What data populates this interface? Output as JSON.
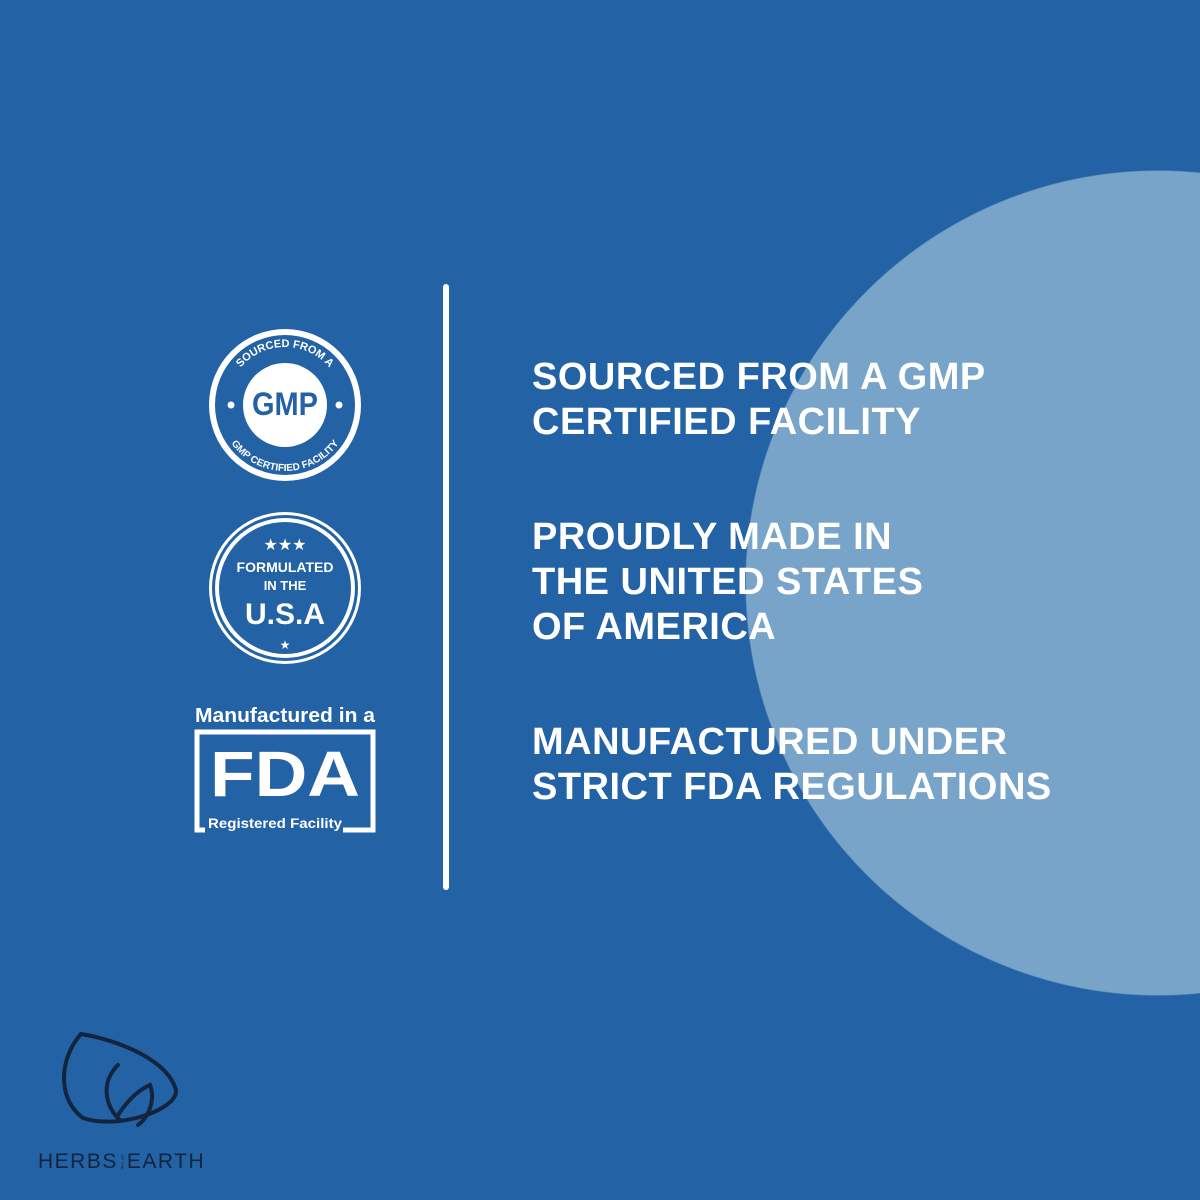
{
  "colors": {
    "background": "#2362a5",
    "circle": "#77a4c8",
    "text": "#ffffff",
    "logo": "#13243f"
  },
  "badges": {
    "gmp": {
      "top_arc": "SOURCED FROM A",
      "center": "GMP",
      "bottom_arc": "GMP CERTIFIED FACILITY"
    },
    "usa": {
      "line1": "FORMULATED",
      "line2": "IN THE",
      "line3": "U.S.A"
    },
    "fda": {
      "top": "Manufactured in a",
      "center": "FDA",
      "bottom": "Registered Facility"
    }
  },
  "claims": [
    "SOURCED FROM A GMP\nCERTIFIED FACILITY",
    "PROUDLY  MADE IN\nTHE UNITED STATES\nOF AMERICA",
    "MANUFACTURED UNDER\nSTRICT FDA REGULATIONS"
  ],
  "brand": {
    "left": "HERBS",
    "middle": "OF THE",
    "right": "EARTH"
  }
}
